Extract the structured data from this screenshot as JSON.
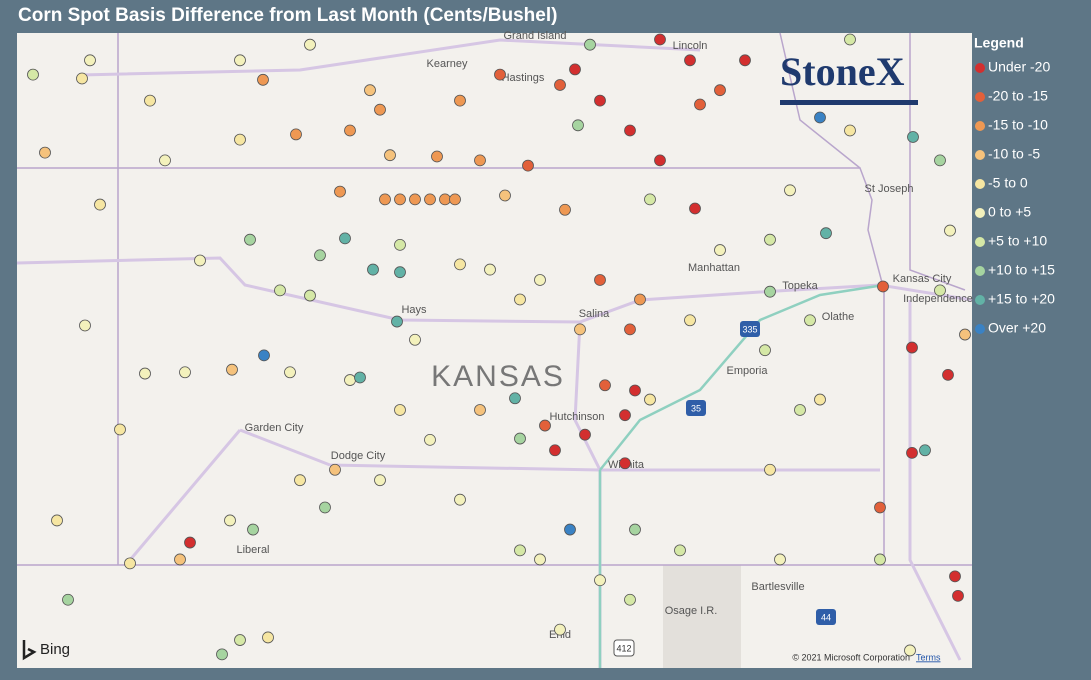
{
  "title": "Corn Spot Basis Difference from Last Month (Cents/Bushel)",
  "legend": {
    "title": "Legend",
    "bins": [
      {
        "label": "Under -20",
        "color": "#d32f2f"
      },
      {
        "label": "-20 to -15",
        "color": "#e2603a"
      },
      {
        "label": "-15 to -10",
        "color": "#ee9853"
      },
      {
        "label": "-10 to -5",
        "color": "#f5c27c"
      },
      {
        "label": "-5 to 0",
        "color": "#f6e6a2"
      },
      {
        "label": "0 to +5",
        "color": "#f3f1bc"
      },
      {
        "label": "+5 to +10",
        "color": "#d5e8a6"
      },
      {
        "label": "+10 to +15",
        "color": "#a6d4a0"
      },
      {
        "label": "+15 to +20",
        "color": "#62b2a6"
      },
      {
        "label": "Over +20",
        "color": "#3a82c4"
      }
    ]
  },
  "map": {
    "extent": {
      "west": -103,
      "east": -93.45,
      "north": 41,
      "south": 36.115
    },
    "places": [
      "Grand Island",
      "Kearney",
      "Hastings",
      "Lincoln",
      "St Joseph",
      "Manhattan",
      "Topeka",
      "Kansas City",
      "Independence",
      "Hays",
      "Salina",
      "Olathe",
      "KANSAS",
      "Emporia",
      "Hutchinson",
      "Wichita",
      "Garden City",
      "Dodge City",
      "Liberal",
      "Bartlesville",
      "Osage I.R.",
      "Enid",
      "335",
      "35",
      "44",
      "412"
    ],
    "logo": "StoneX",
    "provider": "Bing",
    "attribution": "© 2021 Microsoft Corporation",
    "terms": "Terms",
    "stations": [
      [
        -96.57,
        40.95,
        0
      ],
      [
        -96.27,
        40.79,
        0
      ],
      [
        -95.72,
        40.79,
        0
      ],
      [
        -97.42,
        40.72,
        0
      ],
      [
        -97.17,
        40.48,
        0
      ],
      [
        -96.87,
        40.25,
        0
      ],
      [
        -96.57,
        40.02,
        0
      ],
      [
        -96.22,
        39.65,
        0
      ],
      [
        -96.82,
        38.25,
        0
      ],
      [
        -96.92,
        38.06,
        0
      ],
      [
        -97.32,
        37.91,
        0
      ],
      [
        -97.62,
        37.79,
        0
      ],
      [
        -96.92,
        37.69,
        0
      ],
      [
        -94.05,
        38.58,
        0
      ],
      [
        -93.69,
        38.37,
        0
      ],
      [
        -94.05,
        37.77,
        0
      ],
      [
        -93.62,
        36.82,
        0
      ],
      [
        -93.59,
        36.67,
        0
      ],
      [
        -101.27,
        37.08,
        0
      ],
      [
        -98.17,
        40.68,
        1
      ],
      [
        -97.57,
        40.6,
        1
      ],
      [
        -95.97,
        40.56,
        1
      ],
      [
        -96.17,
        40.45,
        1
      ],
      [
        -97.89,
        39.98,
        1
      ],
      [
        -97.17,
        39.1,
        1
      ],
      [
        -96.87,
        38.72,
        1
      ],
      [
        -97.12,
        38.29,
        1
      ],
      [
        -97.72,
        37.98,
        1
      ],
      [
        -94.34,
        39.05,
        1
      ],
      [
        -94.37,
        37.35,
        1
      ],
      [
        -100.54,
        40.64,
        2
      ],
      [
        -100.21,
        40.22,
        2
      ],
      [
        -99.67,
        40.25,
        2
      ],
      [
        -99.37,
        40.41,
        2
      ],
      [
        -98.57,
        40.48,
        2
      ],
      [
        -99.32,
        39.72,
        2
      ],
      [
        -99.17,
        39.72,
        2
      ],
      [
        -99.02,
        39.72,
        2
      ],
      [
        -98.87,
        39.72,
        2
      ],
      [
        -98.72,
        39.72,
        2
      ],
      [
        -98.62,
        39.72,
        2
      ],
      [
        -99.77,
        39.78,
        2
      ],
      [
        -98.8,
        40.05,
        2
      ],
      [
        -98.37,
        40.02,
        2
      ],
      [
        -97.52,
        39.64,
        2
      ],
      [
        -96.77,
        38.95,
        2
      ],
      [
        -102.72,
        40.08,
        3
      ],
      [
        -99.47,
        40.56,
        3
      ],
      [
        -99.27,
        40.06,
        3
      ],
      [
        -97.37,
        38.72,
        3
      ],
      [
        -98.37,
        38.1,
        3
      ],
      [
        -100.85,
        38.41,
        3
      ],
      [
        -93.52,
        38.68,
        3
      ],
      [
        -99.82,
        37.64,
        3
      ],
      [
        -101.37,
        36.95,
        3
      ],
      [
        -98.12,
        39.75,
        3
      ],
      [
        -102.35,
        40.65,
        4
      ],
      [
        -101.67,
        40.48,
        4
      ],
      [
        -100.77,
        40.18,
        4
      ],
      [
        -102.17,
        39.68,
        4
      ],
      [
        -98.57,
        39.22,
        4
      ],
      [
        -97.97,
        38.95,
        4
      ],
      [
        -96.27,
        38.79,
        4
      ],
      [
        -96.67,
        38.18,
        4
      ],
      [
        -99.17,
        38.1,
        4
      ],
      [
        -100.17,
        37.56,
        4
      ],
      [
        -101.87,
        36.92,
        4
      ],
      [
        -100.49,
        36.35,
        4
      ],
      [
        -102.6,
        37.25,
        4
      ],
      [
        -101.97,
        37.95,
        4
      ],
      [
        -94.97,
        38.18,
        4
      ],
      [
        -95.47,
        37.64,
        4
      ],
      [
        -94.67,
        40.25,
        4
      ],
      [
        -102.27,
        40.79,
        5
      ],
      [
        -100.77,
        40.79,
        5
      ],
      [
        -100.07,
        40.91,
        5
      ],
      [
        -101.52,
        40.02,
        5
      ],
      [
        -101.17,
        39.25,
        5
      ],
      [
        -102.32,
        38.75,
        5
      ],
      [
        -101.72,
        38.38,
        5
      ],
      [
        -101.32,
        38.39,
        5
      ],
      [
        -100.27,
        38.39,
        5
      ],
      [
        -99.67,
        38.33,
        5
      ],
      [
        -99.02,
        38.64,
        5
      ],
      [
        -98.27,
        39.18,
        5
      ],
      [
        -97.77,
        39.1,
        5
      ],
      [
        -95.97,
        39.33,
        5
      ],
      [
        -95.27,
        39.79,
        5
      ],
      [
        -93.67,
        39.48,
        5
      ],
      [
        -98.57,
        37.41,
        5
      ],
      [
        -97.77,
        36.95,
        5
      ],
      [
        -97.17,
        36.79,
        5
      ],
      [
        -97.57,
        36.41,
        5
      ],
      [
        -95.37,
        36.95,
        5
      ],
      [
        -94.07,
        36.25,
        5
      ],
      [
        -100.87,
        37.25,
        5
      ],
      [
        -99.37,
        37.56,
        5
      ],
      [
        -98.87,
        37.87,
        5
      ],
      [
        -102.84,
        40.68,
        6
      ],
      [
        -100.37,
        39.02,
        6
      ],
      [
        -100.07,
        38.98,
        6
      ],
      [
        -99.17,
        39.37,
        6
      ],
      [
        -96.67,
        39.72,
        6
      ],
      [
        -95.47,
        39.41,
        6
      ],
      [
        -95.07,
        38.79,
        6
      ],
      [
        -95.52,
        38.56,
        6
      ],
      [
        -95.17,
        38.1,
        6
      ],
      [
        -94.37,
        36.95,
        6
      ],
      [
        -96.37,
        37.02,
        6
      ],
      [
        -97.97,
        37.02,
        6
      ],
      [
        -96.87,
        36.64,
        6
      ],
      [
        -100.77,
        36.33,
        6
      ],
      [
        -94.67,
        40.95,
        6
      ],
      [
        -93.77,
        39.02,
        6
      ],
      [
        -100.67,
        39.41,
        7
      ],
      [
        -99.97,
        39.29,
        7
      ],
      [
        -97.27,
        40.91,
        7
      ],
      [
        -97.39,
        40.29,
        7
      ],
      [
        -93.77,
        40.02,
        7
      ],
      [
        -95.47,
        39.01,
        7
      ],
      [
        -97.97,
        37.88,
        7
      ],
      [
        -100.64,
        37.18,
        7
      ],
      [
        -99.92,
        37.35,
        7
      ],
      [
        -102.49,
        36.64,
        7
      ],
      [
        -100.95,
        36.22,
        7
      ],
      [
        -96.82,
        37.18,
        7
      ],
      [
        -99.72,
        39.42,
        8
      ],
      [
        -99.44,
        39.18,
        8
      ],
      [
        -99.17,
        39.16,
        8
      ],
      [
        -99.2,
        38.78,
        8
      ],
      [
        -99.57,
        38.35,
        8
      ],
      [
        -94.04,
        40.2,
        8
      ],
      [
        -94.91,
        39.46,
        8
      ],
      [
        -93.92,
        37.79,
        8
      ],
      [
        -98.02,
        38.19,
        8
      ],
      [
        -94.97,
        40.35,
        9
      ],
      [
        -100.53,
        38.52,
        9
      ],
      [
        -97.47,
        37.18,
        9
      ]
    ]
  }
}
